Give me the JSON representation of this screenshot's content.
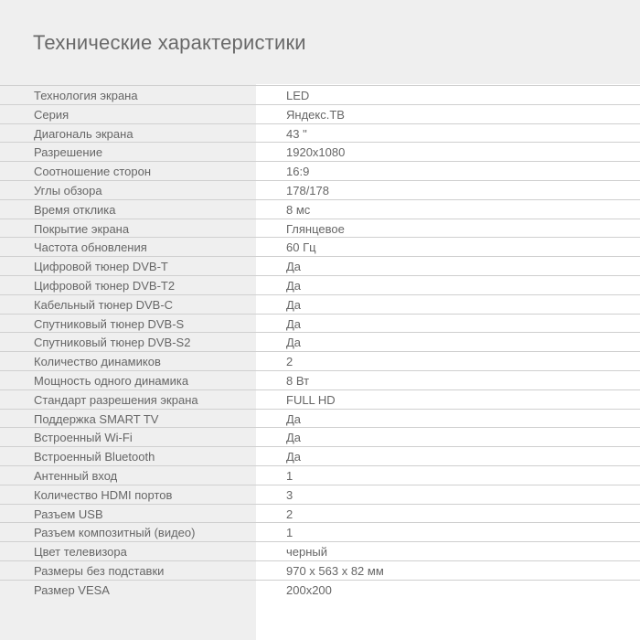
{
  "title": "Технические характеристики",
  "specs": [
    {
      "label": "Технология экрана",
      "value": "LED"
    },
    {
      "label": "Серия",
      "value": "Яндекс.ТВ"
    },
    {
      "label": "Диагональ экрана",
      "value": "43 \""
    },
    {
      "label": "Разрешение",
      "value": "1920x1080"
    },
    {
      "label": "Соотношение сторон",
      "value": "16:9"
    },
    {
      "label": "Углы обзора",
      "value": "178/178"
    },
    {
      "label": "Время отклика",
      "value": "8 мс"
    },
    {
      "label": "Покрытие экрана",
      "value": "Глянцевое"
    },
    {
      "label": "Частота обновления",
      "value": "60 Гц"
    },
    {
      "label": "Цифровой тюнер DVB-T",
      "value": "Да"
    },
    {
      "label": "Цифровой тюнер DVB-T2",
      "value": "Да"
    },
    {
      "label": "Кабельный тюнер DVB-C",
      "value": "Да"
    },
    {
      "label": "Спутниковый тюнер DVB-S",
      "value": "Да"
    },
    {
      "label": "Спутниковый тюнер DVB-S2",
      "value": "Да"
    },
    {
      "label": "Количество динамиков",
      "value": "2"
    },
    {
      "label": "Мощность одного динамика",
      "value": "8 Вт"
    },
    {
      "label": "Стандарт разрешения экрана",
      "value": "FULL HD"
    },
    {
      "label": "Поддержка SMART TV",
      "value": "Да"
    },
    {
      "label": "Встроенный Wi-Fi",
      "value": "Да"
    },
    {
      "label": "Встроенный Bluetooth",
      "value": "Да"
    },
    {
      "label": "Антенный вход",
      "value": "1"
    },
    {
      "label": "Количество HDMI портов",
      "value": "3"
    },
    {
      "label": "Разъем USB",
      "value": "2"
    },
    {
      "label": "Разъем композитный (видео)",
      "value": "1"
    },
    {
      "label": "Цвет телевизора",
      "value": "черный"
    },
    {
      "label": "Размеры без подставки",
      "value": "970 x 563 x 82 мм"
    },
    {
      "label": "Размер VESA",
      "value": "200x200"
    }
  ]
}
